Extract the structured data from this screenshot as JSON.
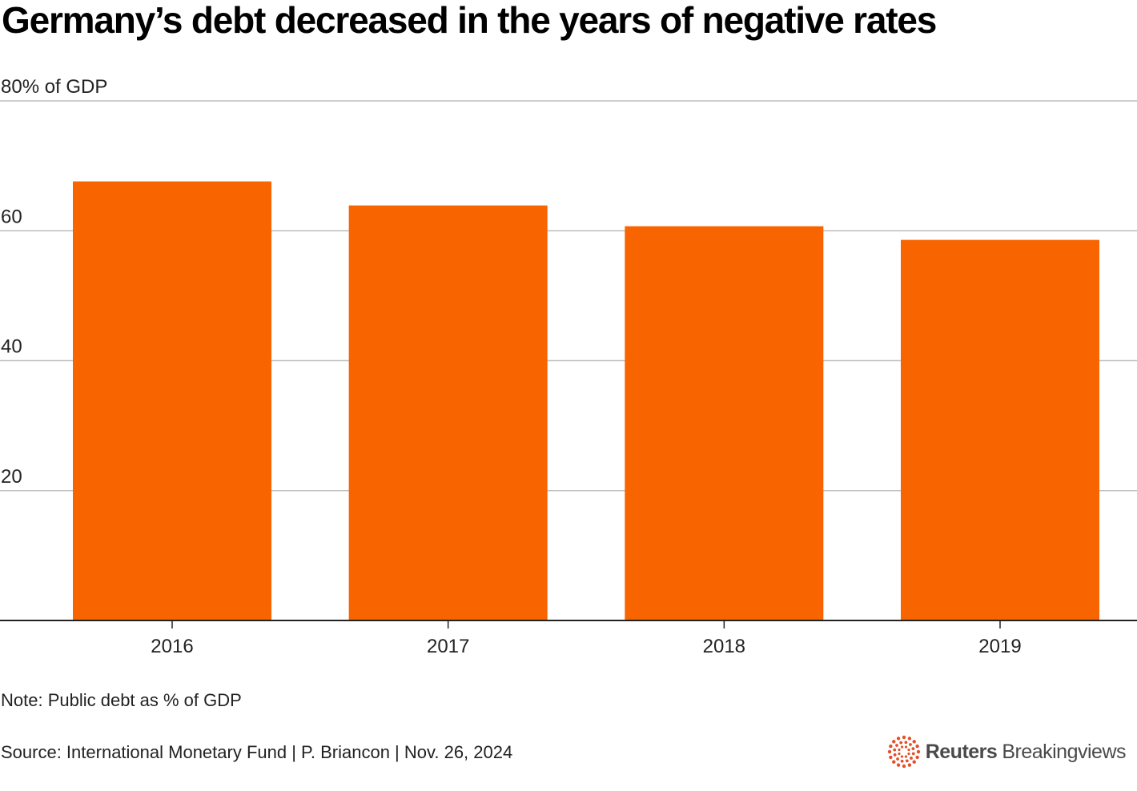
{
  "chart_data": {
    "type": "bar",
    "title": "Germany’s debt decreased in the years of negative rates",
    "ylabel": "80% of GDP",
    "xlabel": "",
    "categories": [
      "2016",
      "2017",
      "2018",
      "2019"
    ],
    "values": [
      67.6,
      63.9,
      60.7,
      58.6
    ],
    "ylim": [
      0,
      80
    ],
    "yticks": [
      20,
      40,
      60
    ],
    "yticks_labels": [
      "20",
      "40",
      "60"
    ],
    "grid": true,
    "bar_color": "#f76400",
    "note": "Note: Public debt as % of GDP",
    "source": "Source: International Monetary Fund | P. Briancon | Nov. 26, 2024"
  },
  "branding": {
    "name_bold": "Reuters",
    "name_regular": "Breakingviews",
    "logo_icon": "reuters-dot-ring-icon",
    "logo_color": "#e2502a"
  }
}
